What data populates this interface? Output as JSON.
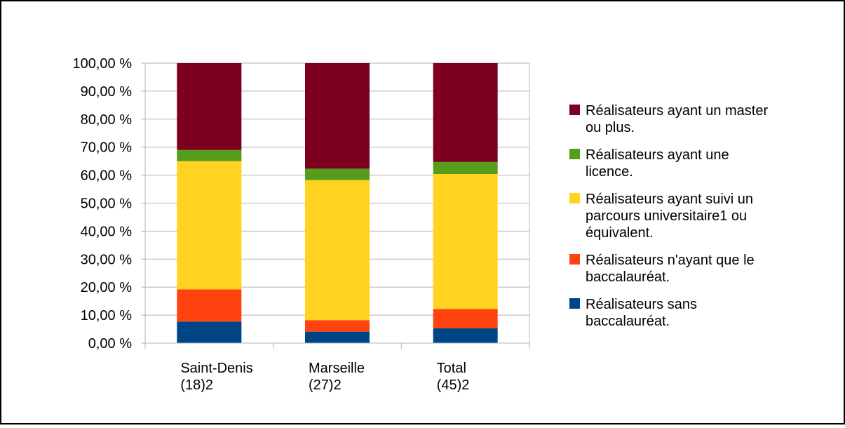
{
  "chart_data": {
    "type": "bar",
    "stacked": true,
    "categories": [
      [
        "Saint-Denis",
        "(18)2"
      ],
      [
        "Marseille",
        "(27)2"
      ],
      [
        "Total",
        "(45)2"
      ]
    ],
    "y_ticks": [
      "0,00 %",
      "10,00 %",
      "20,00 %",
      "30,00 %",
      "40,00 %",
      "50,00 %",
      "60,00 %",
      "70,00 %",
      "80,00 %",
      "90,00 %",
      "100,00 %"
    ],
    "ylim": [
      0,
      100
    ],
    "grid": true,
    "legend_position": "right",
    "series": [
      {
        "name": [
          "Réalisateurs sans",
          "baccalauréat."
        ],
        "color": "#004586",
        "values": [
          7.7,
          4.1,
          5.3
        ]
      },
      {
        "name": [
          "Réalisateurs n'ayant que le",
          "baccalauréat."
        ],
        "color": "#ff420e",
        "values": [
          11.5,
          4.1,
          6.9
        ]
      },
      {
        "name": [
          "Réalisateurs  ayant suivi un",
          "parcours universitaire1 ou",
          "équivalent."
        ],
        "color": "#ffd320",
        "values": [
          45.8,
          50.0,
          48.2
        ]
      },
      {
        "name": [
          "Réalisateurs  ayant une",
          "licence."
        ],
        "color": "#579d1c",
        "values": [
          4.0,
          4.1,
          4.3
        ]
      },
      {
        "name": [
          "Réalisateurs  ayant un master",
          "ou plus."
        ],
        "color": "#7e0021",
        "values": [
          31.0,
          37.7,
          35.3
        ]
      }
    ]
  }
}
